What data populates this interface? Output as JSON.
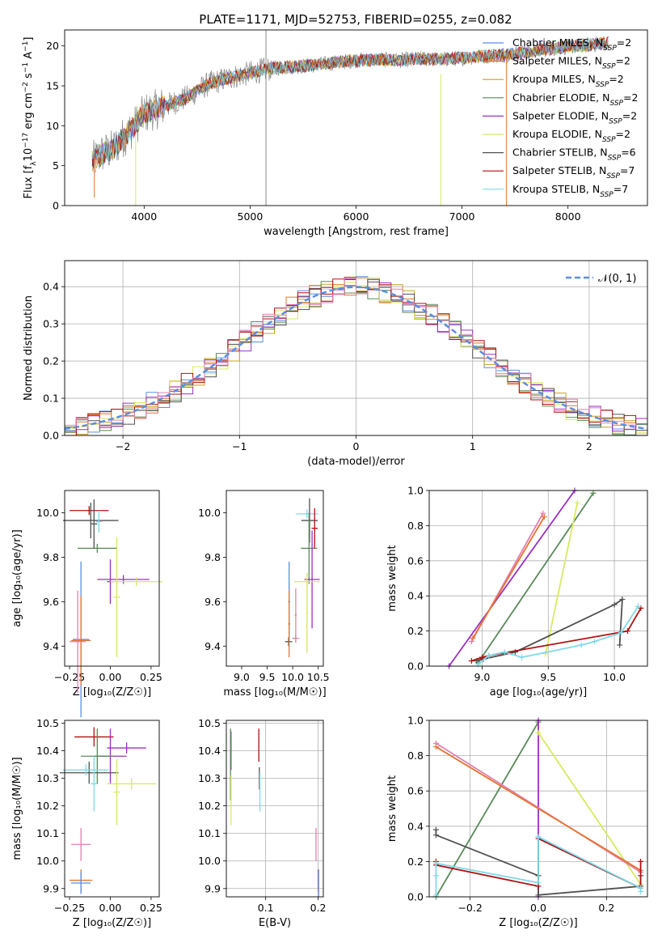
{
  "figure": {
    "title": "PLATE=1171, MJD=52753, FIBERID=0255, z=0.082"
  },
  "colors": {
    "chabrier_miles": "#5b8ee0",
    "salpeter_miles": "#e7742e",
    "kroupa_miles": "#c8a020",
    "chabrier_elodie": "#5a8a5a",
    "salpeter_elodie": "#9b30c0",
    "kroupa_elodie": "#d8e860",
    "chabrier_stelib": "#505050",
    "salpeter_stelib": "#b01010",
    "kroupa_stelib": "#80d8e8",
    "pink": "#e080b0",
    "gray_data": "#888888",
    "gaussian": "#5b8ee0",
    "grid": "#b0b0b0"
  },
  "chart_data": [
    {
      "id": "spectrum",
      "type": "line",
      "title": "PLATE=1171, MJD=52753, FIBERID=0255, z=0.082",
      "xlabel": "wavelength [Angstrom, rest frame]",
      "ylabel": "Flux [f",
      "ylabel_parts": [
        "Flux [f",
        "λ",
        "10",
        "−17",
        " erg cm",
        "−2",
        " s",
        "−1",
        " A",
        "−1",
        "]"
      ],
      "xlim": [
        3250,
        8750
      ],
      "ylim": [
        0,
        22
      ],
      "xticks": [
        4000,
        5000,
        6000,
        7000,
        8000
      ],
      "yticks": [
        0,
        5,
        10,
        15,
        20
      ],
      "grid": false,
      "legend_position": "top-right",
      "continuum_points": [
        [
          3510,
          5.5
        ],
        [
          3600,
          6.5
        ],
        [
          3700,
          7.0
        ],
        [
          3800,
          8.5
        ],
        [
          3900,
          9.8
        ],
        [
          4000,
          11.5
        ],
        [
          4200,
          12.5
        ],
        [
          4400,
          13.5
        ],
        [
          4600,
          15.2
        ],
        [
          4800,
          16.0
        ],
        [
          5000,
          16.6
        ],
        [
          5200,
          17.2
        ],
        [
          5400,
          17.4
        ],
        [
          5600,
          17.6
        ],
        [
          5800,
          17.9
        ],
        [
          6000,
          18.2
        ],
        [
          6200,
          18.3
        ],
        [
          6400,
          18.2
        ],
        [
          6600,
          18.4
        ],
        [
          6800,
          18.3
        ],
        [
          7000,
          18.5
        ],
        [
          7200,
          18.7
        ],
        [
          7400,
          18.9
        ],
        [
          7600,
          19.2
        ],
        [
          7800,
          19.6
        ],
        [
          8000,
          19.9
        ],
        [
          8200,
          20.1
        ],
        [
          8380,
          20.4
        ]
      ],
      "series": [
        {
          "name": "Chabrier MILES, N",
          "sub": "SSP",
          "suffix": "=2",
          "color": "chabrier_miles"
        },
        {
          "name": "Salpeter MILES, N",
          "sub": "SSP",
          "suffix": "=2",
          "color": "salpeter_miles"
        },
        {
          "name": "Kroupa MILES, N",
          "sub": "SSP",
          "suffix": "=2",
          "color": "kroupa_miles"
        },
        {
          "name": "Chabrier ELODIE, N",
          "sub": "SSP",
          "suffix": "=2",
          "color": "chabrier_elodie"
        },
        {
          "name": "Salpeter ELODIE, N",
          "sub": "SSP",
          "suffix": "=2",
          "color": "salpeter_elodie"
        },
        {
          "name": "Kroupa ELODIE, N",
          "sub": "SSP",
          "suffix": "=2",
          "color": "kroupa_elodie"
        },
        {
          "name": "Chabrier STELIB, N",
          "sub": "SSP",
          "suffix": "=6",
          "color": "chabrier_stelib"
        },
        {
          "name": "Salpeter STELIB, N",
          "sub": "SSP",
          "suffix": "=7",
          "color": "salpeter_stelib"
        },
        {
          "name": "Kroupa STELIB, N",
          "sub": "SSP",
          "suffix": "=7",
          "color": "kroupa_stelib"
        }
      ],
      "vertical_lines": [
        {
          "x": 5150,
          "y0": 0,
          "y1": 22,
          "color": "gray_data"
        },
        {
          "x": 6800,
          "y0": 0,
          "y1": 16.5,
          "color": "kroupa_elodie"
        },
        {
          "x": 7420,
          "y0": 0,
          "y1": 18.8,
          "color": "salpeter_miles"
        },
        {
          "x": 3920,
          "y0": 0,
          "y1": 9.0,
          "color": "kroupa_elodie"
        },
        {
          "x": 3530,
          "y0": 1.0,
          "y1": 6.0,
          "color": "salpeter_miles"
        }
      ]
    },
    {
      "id": "residuals",
      "type": "histogram",
      "xlabel": "(data-model)/error",
      "ylabel": "Normed distribution",
      "xlim": [
        -2.5,
        2.5
      ],
      "ylim": [
        0,
        0.47
      ],
      "xticks": [
        -2,
        -1,
        0,
        1,
        2
      ],
      "xtick_labels": [
        "−2",
        "−1",
        "0",
        "1",
        "2"
      ],
      "yticks": [
        0.0,
        0.1,
        0.2,
        0.3,
        0.4
      ],
      "grid": true,
      "legend_position": "top-right",
      "gaussian": {
        "label": "𝒩(0, 1)",
        "mu": 0,
        "sigma": 1,
        "color": "gaussian"
      },
      "bin_width": 0.1,
      "series_colors": [
        "chabrier_miles",
        "salpeter_miles",
        "kroupa_miles",
        "chabrier_elodie",
        "salpeter_elodie",
        "kroupa_elodie",
        "chabrier_stelib",
        "salpeter_stelib",
        "pink"
      ]
    },
    {
      "id": "age_vs_Z",
      "type": "scatter",
      "xlabel": "Z [log₁₀(Z/Z☉)]",
      "ylabel": "age  [log₁₀(age/yr)]",
      "xlim": [
        -0.28,
        0.3
      ],
      "ylim": [
        9.31,
        10.1
      ],
      "xticks": [
        -0.25,
        0,
        0.25
      ],
      "xtick_labels": [
        "−0.25",
        "0.00",
        "0.25"
      ],
      "yticks": [
        9.4,
        9.6,
        9.8,
        10.0
      ],
      "yticklabels": [
        "9.4",
        "9.6",
        "9.8",
        "10.0"
      ],
      "grid": false,
      "points": [
        {
          "x": -0.13,
          "y": 10.01,
          "xerr": 0.12,
          "yerr": 0.02,
          "color": "salpeter_stelib"
        },
        {
          "x": -0.12,
          "y": 9.965,
          "xerr": 0.17,
          "yerr": 0.08,
          "color": "chabrier_stelib"
        },
        {
          "x": -0.08,
          "y": 9.84,
          "xerr": 0.12,
          "yerr": 0.02,
          "color": "chabrier_elodie"
        },
        {
          "x": -0.1,
          "y": 9.95,
          "xerr": 0.02,
          "yerr": 0.11,
          "color": "chabrier_stelib"
        },
        {
          "x": 0.08,
          "y": 9.7,
          "xerr": 0.16,
          "yerr": 0.02,
          "color": "salpeter_elodie"
        },
        {
          "x": 0.0,
          "y": 9.69,
          "xerr": 0.02,
          "yerr": 0.1,
          "color": "salpeter_elodie"
        },
        {
          "x": 0.16,
          "y": 9.69,
          "xerr": 0.16,
          "yerr": 0.02,
          "color": "kroupa_elodie"
        },
        {
          "x": 0.04,
          "y": 9.62,
          "xerr": 0.02,
          "yerr": 0.27,
          "color": "kroupa_elodie"
        },
        {
          "x": -0.18,
          "y": 9.43,
          "xerr": 0.05,
          "yerr": 0.35,
          "color": "chabrier_miles"
        },
        {
          "x": -0.2,
          "y": 9.42,
          "xerr": 0.05,
          "yerr": 0.23,
          "color": "pink"
        },
        {
          "x": -0.18,
          "y": 9.425,
          "xerr": 0.06,
          "yerr": 0.2,
          "color": "salpeter_miles"
        },
        {
          "x": -0.07,
          "y": 9.96,
          "xerr": 0.02,
          "yerr": 0.05,
          "color": "kroupa_stelib"
        }
      ]
    },
    {
      "id": "age_vs_mass",
      "type": "scatter",
      "xlabel": "mass [log₁₀(M/M☉)]",
      "ylabel": "",
      "xlim": [
        8.7,
        10.6
      ],
      "ylim": [
        9.31,
        10.1
      ],
      "xticks": [
        9.0,
        9.5,
        10.0,
        10.5
      ],
      "xtick_labels": [
        "9.0",
        "9.5",
        "10.0",
        "10.5"
      ],
      "yticks": [
        9.4,
        9.6,
        9.8,
        10.0
      ],
      "yticklabels": [
        "9.4",
        "9.6",
        "9.8",
        "10.0"
      ],
      "grid": false,
      "points": [
        {
          "x": 10.28,
          "y": 9.995,
          "xerr": 0.22,
          "yerr": 0.02,
          "color": "kroupa_stelib"
        },
        {
          "x": 10.33,
          "y": 9.965,
          "xerr": 0.16,
          "yerr": 0.1,
          "color": "chabrier_stelib"
        },
        {
          "x": 10.43,
          "y": 9.93,
          "xerr": 0.06,
          "yerr": 0.09,
          "color": "salpeter_stelib"
        },
        {
          "x": 10.32,
          "y": 9.84,
          "xerr": 0.16,
          "yerr": 0.16,
          "color": "chabrier_elodie"
        },
        {
          "x": 10.38,
          "y": 9.7,
          "xerr": 0.15,
          "yerr": 0.22,
          "color": "salpeter_elodie"
        },
        {
          "x": 10.28,
          "y": 9.69,
          "xerr": 0.25,
          "yerr": 0.02,
          "color": "kroupa_elodie"
        },
        {
          "x": 10.28,
          "y": 9.55,
          "xerr": 0.02,
          "yerr": 0.18,
          "color": "kroupa_elodie"
        },
        {
          "x": 9.93,
          "y": 9.6,
          "xerr": 0.02,
          "yerr": 0.18,
          "color": "chabrier_miles"
        },
        {
          "x": 9.92,
          "y": 9.42,
          "xerr": 0.07,
          "yerr": 0.02,
          "color": "chabrier_stelib"
        },
        {
          "x": 9.93,
          "y": 9.5,
          "xerr": 0.02,
          "yerr": 0.15,
          "color": "salpeter_miles"
        },
        {
          "x": 10.06,
          "y": 9.54,
          "xerr": 0.02,
          "yerr": 0.12,
          "color": "pink"
        },
        {
          "x": 10.06,
          "y": 9.435,
          "xerr": 0.07,
          "yerr": 0.02,
          "color": "pink"
        }
      ]
    },
    {
      "id": "massweight_vs_age",
      "type": "line",
      "xlabel": "age  [log₁₀(age/yr)]",
      "ylabel": "mass weight",
      "xlim": [
        8.6,
        10.25
      ],
      "ylim": [
        0,
        1.0
      ],
      "xticks": [
        9.0,
        9.5,
        10.0
      ],
      "xtick_labels": [
        "9.0",
        "9.5",
        "10.0"
      ],
      "yticks": [
        0.0,
        0.2,
        0.4,
        0.6,
        0.8,
        1.0
      ],
      "grid": true,
      "series": [
        {
          "color": "salpeter_elodie",
          "x": [
            8.75,
            9.7
          ],
          "y": [
            0.0,
            1.0
          ]
        },
        {
          "color": "chabrier_elodie",
          "x": [
            8.97,
            9.84
          ],
          "y": [
            0.02,
            0.985
          ]
        },
        {
          "color": "kroupa_elodie",
          "x": [
            9.48,
            9.72
          ],
          "y": [
            0.07,
            0.93
          ]
        },
        {
          "color": "pink",
          "x": [
            8.92,
            9.46
          ],
          "y": [
            0.14,
            0.87
          ]
        },
        {
          "color": "salpeter_miles",
          "x": [
            8.93,
            9.47
          ],
          "y": [
            0.16,
            0.85
          ]
        },
        {
          "color": "chabrier_stelib",
          "x": [
            8.96,
            9.01,
            9.25,
            10.0,
            10.06,
            10.04
          ],
          "y": [
            0.03,
            0.04,
            0.08,
            0.35,
            0.38,
            0.12
          ]
        },
        {
          "color": "salpeter_stelib",
          "x": [
            8.92,
            9.0,
            9.05,
            10.1,
            10.2
          ],
          "y": [
            0.03,
            0.05,
            0.06,
            0.2,
            0.33
          ]
        },
        {
          "color": "kroupa_stelib",
          "x": [
            8.97,
            9.05,
            9.17,
            9.3,
            9.75,
            9.85,
            10.05,
            10.18
          ],
          "y": [
            0.01,
            0.06,
            0.08,
            0.05,
            0.12,
            0.14,
            0.19,
            0.34
          ]
        }
      ]
    },
    {
      "id": "mass_vs_Z",
      "type": "scatter",
      "xlabel": "Z [log₁₀(Z/Z☉)]",
      "ylabel": "mass [log₁₀(M/M☉)]",
      "xlim": [
        -0.28,
        0.3
      ],
      "ylim": [
        9.87,
        10.51
      ],
      "xticks": [
        -0.25,
        0,
        0.25
      ],
      "xtick_labels": [
        "−0.25",
        "0.00",
        "0.25"
      ],
      "yticks": [
        9.9,
        10.0,
        10.1,
        10.2,
        10.3,
        10.4,
        10.5
      ],
      "yticklabels": [
        "9.9",
        "10.0",
        "10.1",
        "10.2",
        "10.3",
        "10.4",
        "10.5"
      ],
      "grid": false,
      "points": [
        {
          "x": -0.1,
          "y": 10.45,
          "xerr": 0.12,
          "yerr": 0.035,
          "color": "salpeter_stelib"
        },
        {
          "x": 0.1,
          "y": 10.41,
          "xerr": 0.12,
          "yerr": 0.02,
          "color": "salpeter_elodie"
        },
        {
          "x": 0.0,
          "y": 10.38,
          "xerr": 0.1,
          "yerr": 0.1,
          "color": "salpeter_elodie"
        },
        {
          "x": -0.08,
          "y": 10.38,
          "xerr": 0.1,
          "yerr": 0.1,
          "color": "chabrier_elodie"
        },
        {
          "x": -0.13,
          "y": 10.32,
          "xerr": 0.18,
          "yerr": 0.04,
          "color": "chabrier_stelib"
        },
        {
          "x": -0.15,
          "y": 10.33,
          "xerr": 0.14,
          "yerr": 0.02,
          "color": "kroupa_stelib"
        },
        {
          "x": -0.1,
          "y": 10.28,
          "xerr": 0.02,
          "yerr": 0.1,
          "color": "kroupa_stelib"
        },
        {
          "x": 0.13,
          "y": 10.28,
          "xerr": 0.15,
          "yerr": 0.02,
          "color": "kroupa_elodie"
        },
        {
          "x": 0.04,
          "y": 10.25,
          "xerr": 0.02,
          "yerr": 0.12,
          "color": "kroupa_elodie"
        },
        {
          "x": -0.18,
          "y": 10.06,
          "xerr": 0.06,
          "yerr": 0.06,
          "color": "pink"
        },
        {
          "x": -0.18,
          "y": 9.93,
          "xerr": 0.07,
          "yerr": 0.04,
          "color": "salpeter_miles"
        },
        {
          "x": -0.18,
          "y": 9.92,
          "xerr": 0.06,
          "yerr": 0.04,
          "color": "chabrier_miles"
        }
      ]
    },
    {
      "id": "mass_vs_ebv",
      "type": "scatter",
      "xlabel": "E(B-V)",
      "ylabel": "",
      "xlim": [
        0.025,
        0.21
      ],
      "ylim": [
        9.87,
        10.51
      ],
      "xticks": [
        0.1,
        0.2
      ],
      "xtick_labels": [
        "0.1",
        "0.2"
      ],
      "yticks": [
        9.9,
        10.0,
        10.1,
        10.2,
        10.3,
        10.4,
        10.5
      ],
      "yticklabels": [
        "9.9",
        "10.0",
        "10.1",
        "10.2",
        "10.3",
        "10.4",
        "10.5"
      ],
      "grid": true,
      "points": [
        {
          "x": 0.034,
          "y": 10.4,
          "xerr": 0.0,
          "yerr": 0.07,
          "color": "salpeter_elodie"
        },
        {
          "x": 0.033,
          "y": 10.35,
          "xerr": 0.0,
          "yerr": 0.13,
          "color": "chabrier_elodie"
        },
        {
          "x": 0.034,
          "y": 10.22,
          "xerr": 0.0,
          "yerr": 0.09,
          "color": "kroupa_elodie"
        },
        {
          "x": 0.087,
          "y": 10.42,
          "xerr": 0.0,
          "yerr": 0.06,
          "color": "salpeter_stelib"
        },
        {
          "x": 0.088,
          "y": 10.3,
          "xerr": 0.0,
          "yerr": 0.04,
          "color": "chabrier_stelib"
        },
        {
          "x": 0.089,
          "y": 10.25,
          "xerr": 0.0,
          "yerr": 0.07,
          "color": "kroupa_stelib"
        },
        {
          "x": 0.196,
          "y": 10.06,
          "xerr": 0.0,
          "yerr": 0.06,
          "color": "pink"
        },
        {
          "x": 0.2,
          "y": 9.93,
          "xerr": 0.0,
          "yerr": 0.04,
          "color": "salpeter_miles"
        },
        {
          "x": 0.201,
          "y": 9.92,
          "xerr": 0.0,
          "yerr": 0.05,
          "color": "chabrier_miles"
        }
      ]
    },
    {
      "id": "massweight_vs_Z",
      "type": "line",
      "xlabel": "Z [log₁₀(Z/Z☉)]",
      "ylabel": "mass weight",
      "xlim": [
        -0.32,
        0.32
      ],
      "ylim": [
        0,
        1.0
      ],
      "xticks": [
        -0.2,
        0.0,
        0.2
      ],
      "xtick_labels": [
        "−0.2",
        "0.0",
        "0.2"
      ],
      "yticks": [
        0.0,
        0.2,
        0.4,
        0.6,
        0.8,
        1.0
      ],
      "grid": true,
      "series": [
        {
          "color": "chabrier_elodie",
          "x": [
            -0.3,
            0.0
          ],
          "y": [
            0.0,
            0.99
          ]
        },
        {
          "color": "salpeter_elodie",
          "x": [
            0.0,
            0.0
          ],
          "y": [
            0.0,
            1.0
          ]
        },
        {
          "color": "kroupa_elodie",
          "x": [
            0.0,
            0.3
          ],
          "y": [
            0.93,
            0.07
          ]
        },
        {
          "color": "pink",
          "x": [
            -0.3,
            0.3
          ],
          "y": [
            0.87,
            0.14
          ]
        },
        {
          "color": "salpeter_miles",
          "x": [
            -0.3,
            0.3
          ],
          "y": [
            0.85,
            0.15
          ]
        },
        {
          "color": "chabrier_stelib",
          "x": [
            -0.3,
            -0.3,
            0.0,
            0.0,
            0.3,
            0.3
          ],
          "y": [
            0.38,
            0.35,
            0.12,
            0.01,
            0.06,
            0.12
          ]
        },
        {
          "color": "salpeter_stelib",
          "x": [
            -0.3,
            -0.3,
            0.0,
            0.0,
            0.3,
            0.3
          ],
          "y": [
            0.2,
            0.18,
            0.06,
            0.33,
            0.05,
            0.2
          ]
        },
        {
          "color": "kroupa_stelib",
          "x": [
            -0.3,
            -0.3,
            -0.3,
            0.0,
            0.0,
            0.3,
            0.3
          ],
          "y": [
            0.01,
            0.12,
            0.19,
            0.08,
            0.34,
            0.05,
            0.03
          ]
        }
      ]
    }
  ]
}
